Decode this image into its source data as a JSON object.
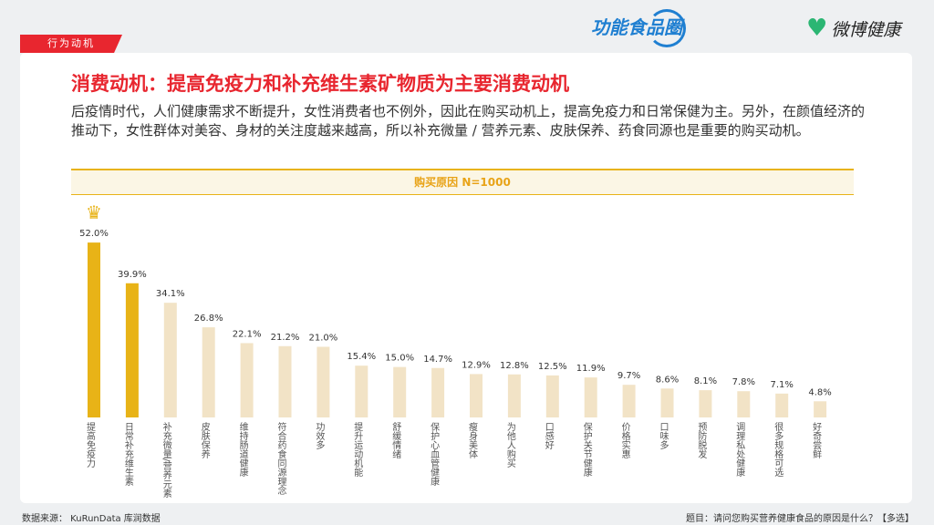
{
  "tag": "行为动机",
  "logos": {
    "left": "功能食品圈",
    "right": "微博健康"
  },
  "title": "消费动机：提高免疫力和补充维生素矿物质为主要消费动机",
  "description": "后疫情时代，人们健康需求不断提升，女性消费者也不例外，因此在购买动机上，提高免疫力和日常保健为主。另外，在颜值经济的推动下，女性群体对美容、身材的关注度越来越高，所以补充微量 / 营养元素、皮肤保养、药食同源也是重要的购买动机。",
  "source": "数据来源： KuRunData 库润数据",
  "question": "题目：请问您购买营养健康食品的原因是什么？【多选】",
  "colors": {
    "accent": "#e8262f",
    "highlight": "#e8b317",
    "bar": "#f2e3c6"
  },
  "chart_data": {
    "type": "bar",
    "title": "购买原因 N=1000",
    "categories": [
      "提高免疫力",
      "日常补充维生素",
      "补充微量/营养元素",
      "皮肤保养",
      "维持肠道健康",
      "符合药食同源理念",
      "功效多",
      "提升运动机能",
      "舒缓情绪",
      "保护心血管健康",
      "瘦身美体",
      "为他人购买",
      "口感好",
      "保护关节健康",
      "价格实惠",
      "口味多",
      "预防脱发",
      "调理私处健康",
      "很多规格可选",
      "好奇尝鲜"
    ],
    "values": [
      52.0,
      39.9,
      34.1,
      26.8,
      22.1,
      21.2,
      21.0,
      15.4,
      15.0,
      14.7,
      12.9,
      12.8,
      12.5,
      11.9,
      9.7,
      8.6,
      8.1,
      7.8,
      7.1,
      4.8
    ],
    "unit": "%",
    "highlighted": [
      0,
      1
    ]
  }
}
